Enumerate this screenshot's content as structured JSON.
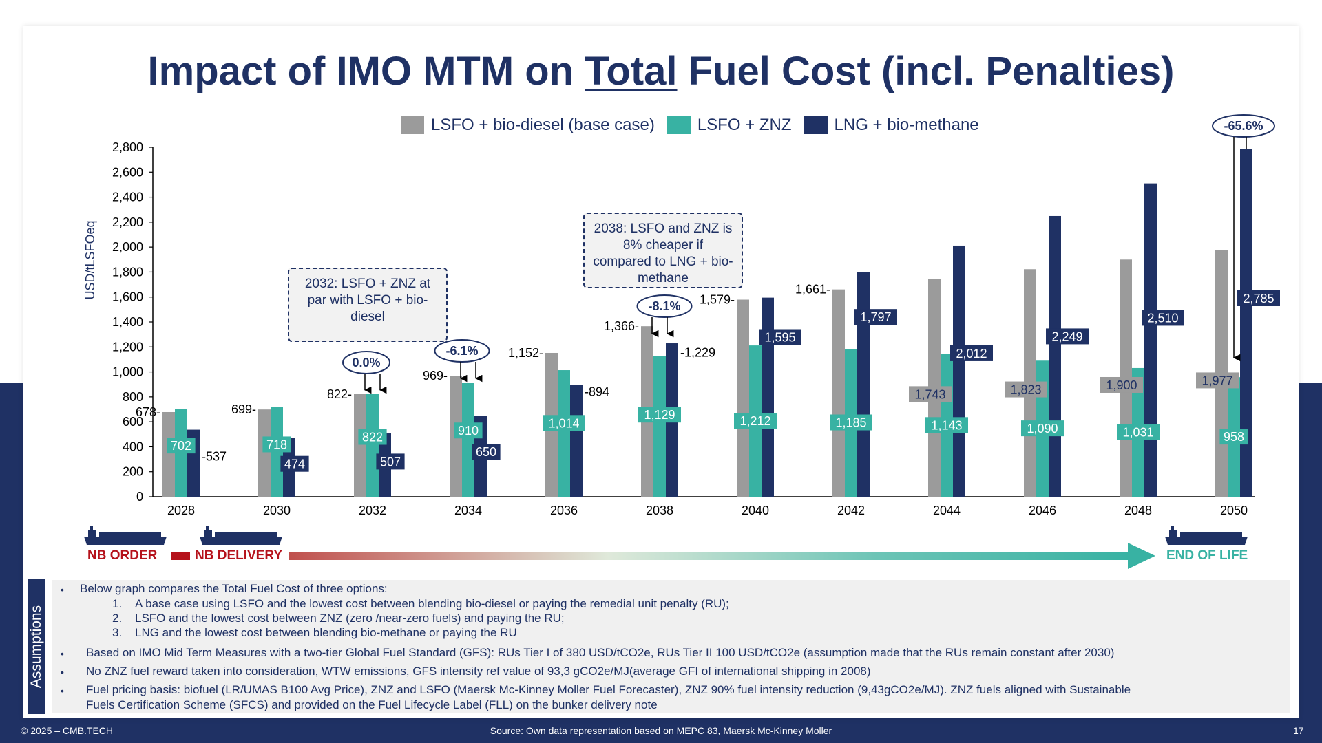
{
  "slide": {
    "title_before": "Impact of IMO MTM on ",
    "title_underlined": "Total",
    "title_after": " Fuel Cost (incl. Penalties)",
    "page_number": "17",
    "copyright": "© 2025 – CMB.TECH",
    "source": "Source:  Own data representation based on MEPC 83, Maersk Mc-Kinney Moller"
  },
  "colors": {
    "navy": "#1f3164",
    "grey": "#9b9b9b",
    "teal": "#38b2a3",
    "red": "#b5121b"
  },
  "chart_data": {
    "type": "bar",
    "ylabel": "USD/tLSFOeq",
    "ylim": [
      0,
      2800
    ],
    "yticks": [
      0,
      200,
      400,
      600,
      800,
      1000,
      1200,
      1400,
      1600,
      1800,
      2000,
      2200,
      2400,
      2600,
      2800
    ],
    "ytick_labels": [
      "0",
      "200",
      "400",
      "600",
      "800",
      "1,000",
      "1,200",
      "1,400",
      "1,600",
      "1,800",
      "2,000",
      "2,200",
      "2,400",
      "2,600",
      "2,800"
    ],
    "categories": [
      "2028",
      "2030",
      "2032",
      "2034",
      "2036",
      "2038",
      "2040",
      "2042",
      "2044",
      "2046",
      "2048",
      "2050"
    ],
    "series": [
      {
        "name": "LSFO + bio-diesel (base case)",
        "color": "#9b9b9b",
        "values": [
          678,
          699,
          822,
          969,
          1152,
          1366,
          1579,
          1661,
          1743,
          1823,
          1900,
          1977
        ],
        "labels": [
          "678",
          "699",
          "822",
          "969",
          "1,152",
          "1,366",
          "1,579",
          "1,661",
          "1,743",
          "1,823",
          "1,900",
          "1,977"
        ]
      },
      {
        "name": "LSFO + ZNZ",
        "color": "#38b2a3",
        "values": [
          702,
          718,
          822,
          910,
          1014,
          1129,
          1212,
          1185,
          1143,
          1090,
          1031,
          958
        ],
        "labels": [
          "702",
          "718",
          "822",
          "910",
          "1,014",
          "1,129",
          "1,212",
          "1,185",
          "1,143",
          "1,090",
          "1,031",
          "958"
        ]
      },
      {
        "name": "LNG + bio-methane",
        "color": "#1f3164",
        "values": [
          537,
          474,
          507,
          650,
          894,
          1229,
          1595,
          1797,
          2012,
          2249,
          2510,
          2785
        ],
        "labels": [
          "537",
          "474",
          "507",
          "650",
          "894",
          "1,229",
          "1,595",
          "1,797",
          "2,012",
          "2,249",
          "2,510",
          "2,785"
        ]
      }
    ],
    "callouts": [
      {
        "text": "0.0%",
        "category": "2032"
      },
      {
        "text": "-6.1%",
        "category": "2034"
      },
      {
        "text": "-8.1%",
        "category": "2038"
      },
      {
        "text": "-65.6%",
        "category": "2050"
      }
    ],
    "notes": [
      "2032: LSFO + ZNZ at par with LSFO + bio-diesel",
      "2038: LSFO and ZNZ is 8% cheaper if compared to LNG + bio-methane"
    ],
    "legend_position": "top"
  },
  "timeline": {
    "nb_order": "NB ORDER",
    "nb_delivery": "NB DELIVERY",
    "end_of_life": "END OF LIFE"
  },
  "assumptions": {
    "tab_label": "Assumptions",
    "intro": "Below graph compares the Total Fuel Cost of three options:",
    "options": [
      {
        "num": "1.",
        "text": "A base case using LSFO and the lowest cost between blending bio-diesel or paying the remedial unit penalty (RU);"
      },
      {
        "num": "2.",
        "text": "LSFO and the lowest cost between ZNZ (zero /near-zero fuels) and paying the RU;"
      },
      {
        "num": "3.",
        "text": "LNG and the lowest cost between blending bio-methane or paying the RU"
      }
    ],
    "bullet2": "Based on IMO Mid Term Measures with a two-tier Global Fuel Standard (GFS): RUs Tier I of 380 USD/tCO2e, RUs Tier II 100 USD/tCO2e (assumption made that the RUs remain constant after 2030)",
    "bullet3": "No ZNZ fuel reward taken into consideration, WTW emissions, GFS intensity ref value of 93,3 gCO2e/MJ(average GFI of international shipping in 2008)",
    "bullet4_line1": "Fuel pricing basis: biofuel (LR/UMAS B100 Avg Price), ZNZ and LSFO (Maersk Mc-Kinney Moller Fuel Forecaster), ZNZ 90% fuel intensity reduction (9,43gCO2e/MJ). ZNZ fuels aligned with Sustainable",
    "bullet4_line2": "Fuels Certification Scheme (SFCS) and provided on the Fuel Lifecycle Label (FLL) on the bunker delivery note"
  }
}
